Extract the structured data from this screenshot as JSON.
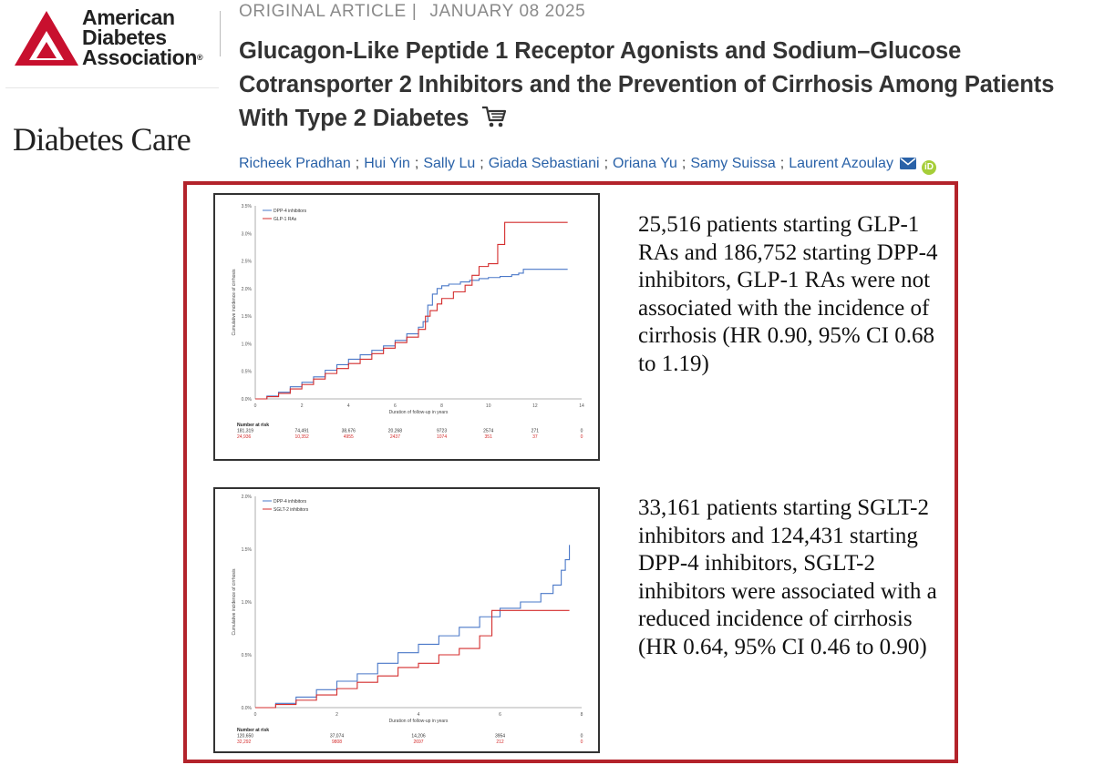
{
  "logo": {
    "org_lines": [
      "American",
      "Diabetes",
      "Association"
    ],
    "reg": "®",
    "journal": "Diabetes Care",
    "brand_color": "#c8102e"
  },
  "article": {
    "type": "ORIGINAL ARTICLE",
    "separator": "|",
    "date": "JANUARY 08 2025",
    "title": "Glucagon-Like Peptide 1 Receptor Agonists and Sodium–Glucose Cotransporter 2 Inhibitors and the Prevention of Cirrhosis Among Patients With Type 2 Diabetes",
    "cart_icon": "cart-icon",
    "authors": [
      "Richeek Pradhan",
      "Hui Yin",
      "Sally Lu",
      "Giada Sebastiani",
      "Oriana Yu",
      "Samy Suissa",
      "Laurent Azoulay"
    ],
    "author_separator": ";",
    "mail_icon": "envelope-icon",
    "orcid_label": "iD"
  },
  "frame_color": "#b3232b",
  "chart_data": [
    {
      "type": "line",
      "ylabel": "Cumulative incidence of cirrhosis",
      "xlabel": "Duration of follow-up in years",
      "xlim": [
        0,
        14
      ],
      "ylim": [
        0,
        3.5
      ],
      "x_ticks": [
        "0",
        "2",
        "4",
        "6",
        "8",
        "10",
        "12",
        "14"
      ],
      "y_ticks": [
        "0.0%",
        "0.5%",
        "1.0%",
        "1.5%",
        "2.0%",
        "2.5%",
        "3.0%",
        "3.5%"
      ],
      "legend_position": "top-left",
      "series": [
        {
          "name": "DPP-4 inhibitors",
          "color": "#4a78c8",
          "points": [
            [
              0,
              0
            ],
            [
              0.5,
              0.05
            ],
            [
              1,
              0.12
            ],
            [
              1.5,
              0.22
            ],
            [
              2,
              0.3
            ],
            [
              2.5,
              0.4
            ],
            [
              3,
              0.52
            ],
            [
              3.5,
              0.62
            ],
            [
              4,
              0.72
            ],
            [
              4.5,
              0.8
            ],
            [
              5,
              0.88
            ],
            [
              5.5,
              0.96
            ],
            [
              6,
              1.06
            ],
            [
              6.5,
              1.18
            ],
            [
              7,
              1.3
            ],
            [
              7.2,
              1.4
            ],
            [
              7.4,
              1.7
            ],
            [
              7.6,
              1.9
            ],
            [
              7.8,
              2.0
            ],
            [
              8,
              2.05
            ],
            [
              8.3,
              2.08
            ],
            [
              8.8,
              2.12
            ],
            [
              9.2,
              2.15
            ],
            [
              9.6,
              2.18
            ],
            [
              10,
              2.2
            ],
            [
              10.5,
              2.22
            ],
            [
              11,
              2.25
            ],
            [
              11.3,
              2.28
            ],
            [
              11.5,
              2.35
            ],
            [
              12,
              2.35
            ],
            [
              13.4,
              2.35
            ]
          ]
        },
        {
          "name": "GLP-1 RAs",
          "color": "#d42d2d",
          "points": [
            [
              0,
              0
            ],
            [
              0.5,
              0.04
            ],
            [
              1,
              0.1
            ],
            [
              1.5,
              0.18
            ],
            [
              2,
              0.26
            ],
            [
              2.5,
              0.36
            ],
            [
              3,
              0.46
            ],
            [
              3.5,
              0.55
            ],
            [
              4,
              0.64
            ],
            [
              4.5,
              0.72
            ],
            [
              5,
              0.82
            ],
            [
              5.5,
              0.92
            ],
            [
              6,
              1.02
            ],
            [
              6.5,
              1.12
            ],
            [
              7,
              1.26
            ],
            [
              7.3,
              1.5
            ],
            [
              7.5,
              1.6
            ],
            [
              7.8,
              1.72
            ],
            [
              8,
              1.82
            ],
            [
              8.5,
              1.94
            ],
            [
              9,
              2.06
            ],
            [
              9.3,
              2.24
            ],
            [
              9.6,
              2.4
            ],
            [
              10,
              2.45
            ],
            [
              10.4,
              2.8
            ],
            [
              10.7,
              3.2
            ],
            [
              13.4,
              3.2
            ]
          ]
        }
      ],
      "risk_table": {
        "label": "Number at risk",
        "rows": [
          {
            "color": "#333333",
            "values": [
              "181,319",
              "74,491",
              "38,676",
              "20,268",
              "9723",
              "2574",
              "271",
              "0"
            ]
          },
          {
            "color": "#d42d2d",
            "values": [
              "24,936",
              "10,352",
              "4955",
              "2437",
              "1074",
              "351",
              "37",
              "0"
            ]
          }
        ]
      }
    },
    {
      "type": "line",
      "ylabel": "Cumulative incidence of cirrhosis",
      "xlabel": "Duration of follow-up in years",
      "xlim": [
        0,
        8
      ],
      "ylim": [
        0,
        2.0
      ],
      "x_ticks": [
        "0",
        "2",
        "4",
        "6",
        "8"
      ],
      "y_ticks": [
        "0.0%",
        "0.5%",
        "1.0%",
        "1.5%",
        "2.0%"
      ],
      "legend_position": "top-left",
      "series": [
        {
          "name": "DPP-4 inhibitors",
          "color": "#4a78c8",
          "points": [
            [
              0,
              0
            ],
            [
              0.5,
              0.04
            ],
            [
              1,
              0.1
            ],
            [
              1.5,
              0.17
            ],
            [
              2,
              0.25
            ],
            [
              2.5,
              0.32
            ],
            [
              3,
              0.42
            ],
            [
              3.5,
              0.52
            ],
            [
              4,
              0.6
            ],
            [
              4.5,
              0.68
            ],
            [
              5,
              0.76
            ],
            [
              5.5,
              0.86
            ],
            [
              6,
              0.94
            ],
            [
              6.5,
              1.0
            ],
            [
              7,
              1.08
            ],
            [
              7.3,
              1.16
            ],
            [
              7.5,
              1.3
            ],
            [
              7.6,
              1.4
            ],
            [
              7.7,
              1.54
            ]
          ]
        },
        {
          "name": "SGLT-2 inhibitors",
          "color": "#d42d2d",
          "points": [
            [
              0,
              0
            ],
            [
              0.5,
              0.03
            ],
            [
              1,
              0.07
            ],
            [
              1.5,
              0.12
            ],
            [
              2,
              0.18
            ],
            [
              2.5,
              0.24
            ],
            [
              3,
              0.3
            ],
            [
              3.5,
              0.38
            ],
            [
              4,
              0.42
            ],
            [
              4.5,
              0.5
            ],
            [
              5,
              0.56
            ],
            [
              5.5,
              0.68
            ],
            [
              5.8,
              0.92
            ],
            [
              6.5,
              0.92
            ],
            [
              7.7,
              0.92
            ]
          ]
        }
      ],
      "risk_table": {
        "label": "Number at risk",
        "rows": [
          {
            "color": "#333333",
            "values": [
              "120,650",
              "37,074",
              "14,206",
              "3954",
              "0"
            ]
          },
          {
            "color": "#d42d2d",
            "values": [
              "32,292",
              "9808",
              "2697",
              "212",
              "0"
            ]
          }
        ]
      }
    }
  ],
  "summaries": [
    "25,516 patients starting GLP-1 RAs and 186,752 starting DPP-4 inhibitors, GLP-1 RAs were not associated with the incidence of cirrhosis (HR 0.90, 95% CI 0.68 to 1.19)",
    "33,161 patients starting SGLT-2 inhibitors and 124,431 starting DPP-4 inhibitors, SGLT-2 inhibitors were associated with a reduced incidence of cirrhosis (HR 0.64, 95% CI 0.46 to 0.90)"
  ]
}
